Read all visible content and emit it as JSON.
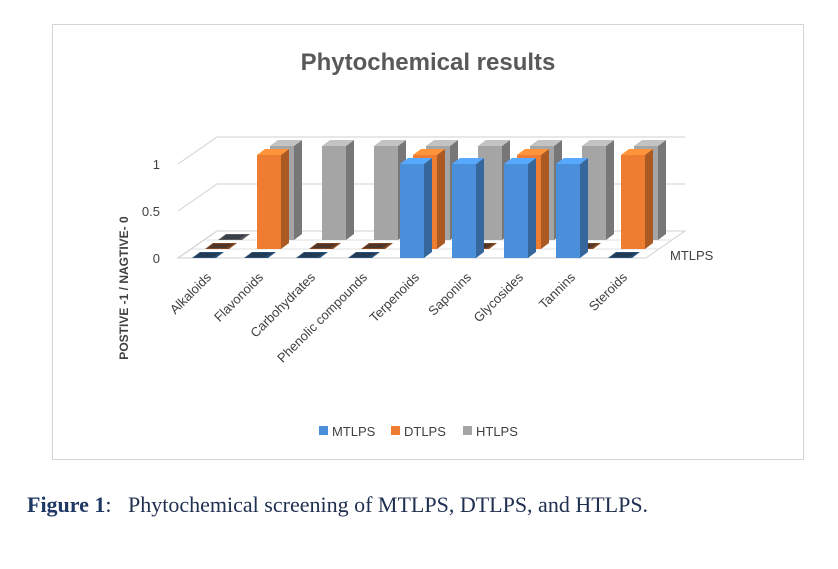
{
  "chart_data": {
    "type": "bar",
    "title": "Phytochemical results",
    "ylabel": "POSTIVE -1 / NAGTIVE- 0",
    "yticks": [
      "0",
      "0.5",
      "1"
    ],
    "ylim": [
      0,
      1
    ],
    "categories": [
      "Alkaloids",
      "Flavonoids",
      "Carbohydrates",
      "Phenolic compounds",
      "Terpenoids",
      "Saponins",
      "Glycosides",
      "Tannins",
      "Steroids"
    ],
    "depth_label": "MTLPS",
    "series": [
      {
        "name": "MTLPS",
        "color": "#4a8fd9",
        "values": [
          0,
          0,
          0,
          0,
          1,
          1,
          1,
          1,
          0
        ]
      },
      {
        "name": "DTLPS",
        "color": "#ef7d31",
        "values": [
          0,
          1,
          0,
          0,
          1,
          0,
          1,
          0,
          1
        ]
      },
      {
        "name": "HTLPS",
        "color": "#a5a5a5",
        "values": [
          0,
          1,
          1,
          1,
          1,
          1,
          1,
          1,
          1
        ]
      }
    ],
    "legend_position": "bottom",
    "three_d": true
  },
  "caption": {
    "label": "Figure 1",
    "separator": ":",
    "text": "Phytochemical screening of MTLPS, DTLPS, and HTLPS."
  }
}
